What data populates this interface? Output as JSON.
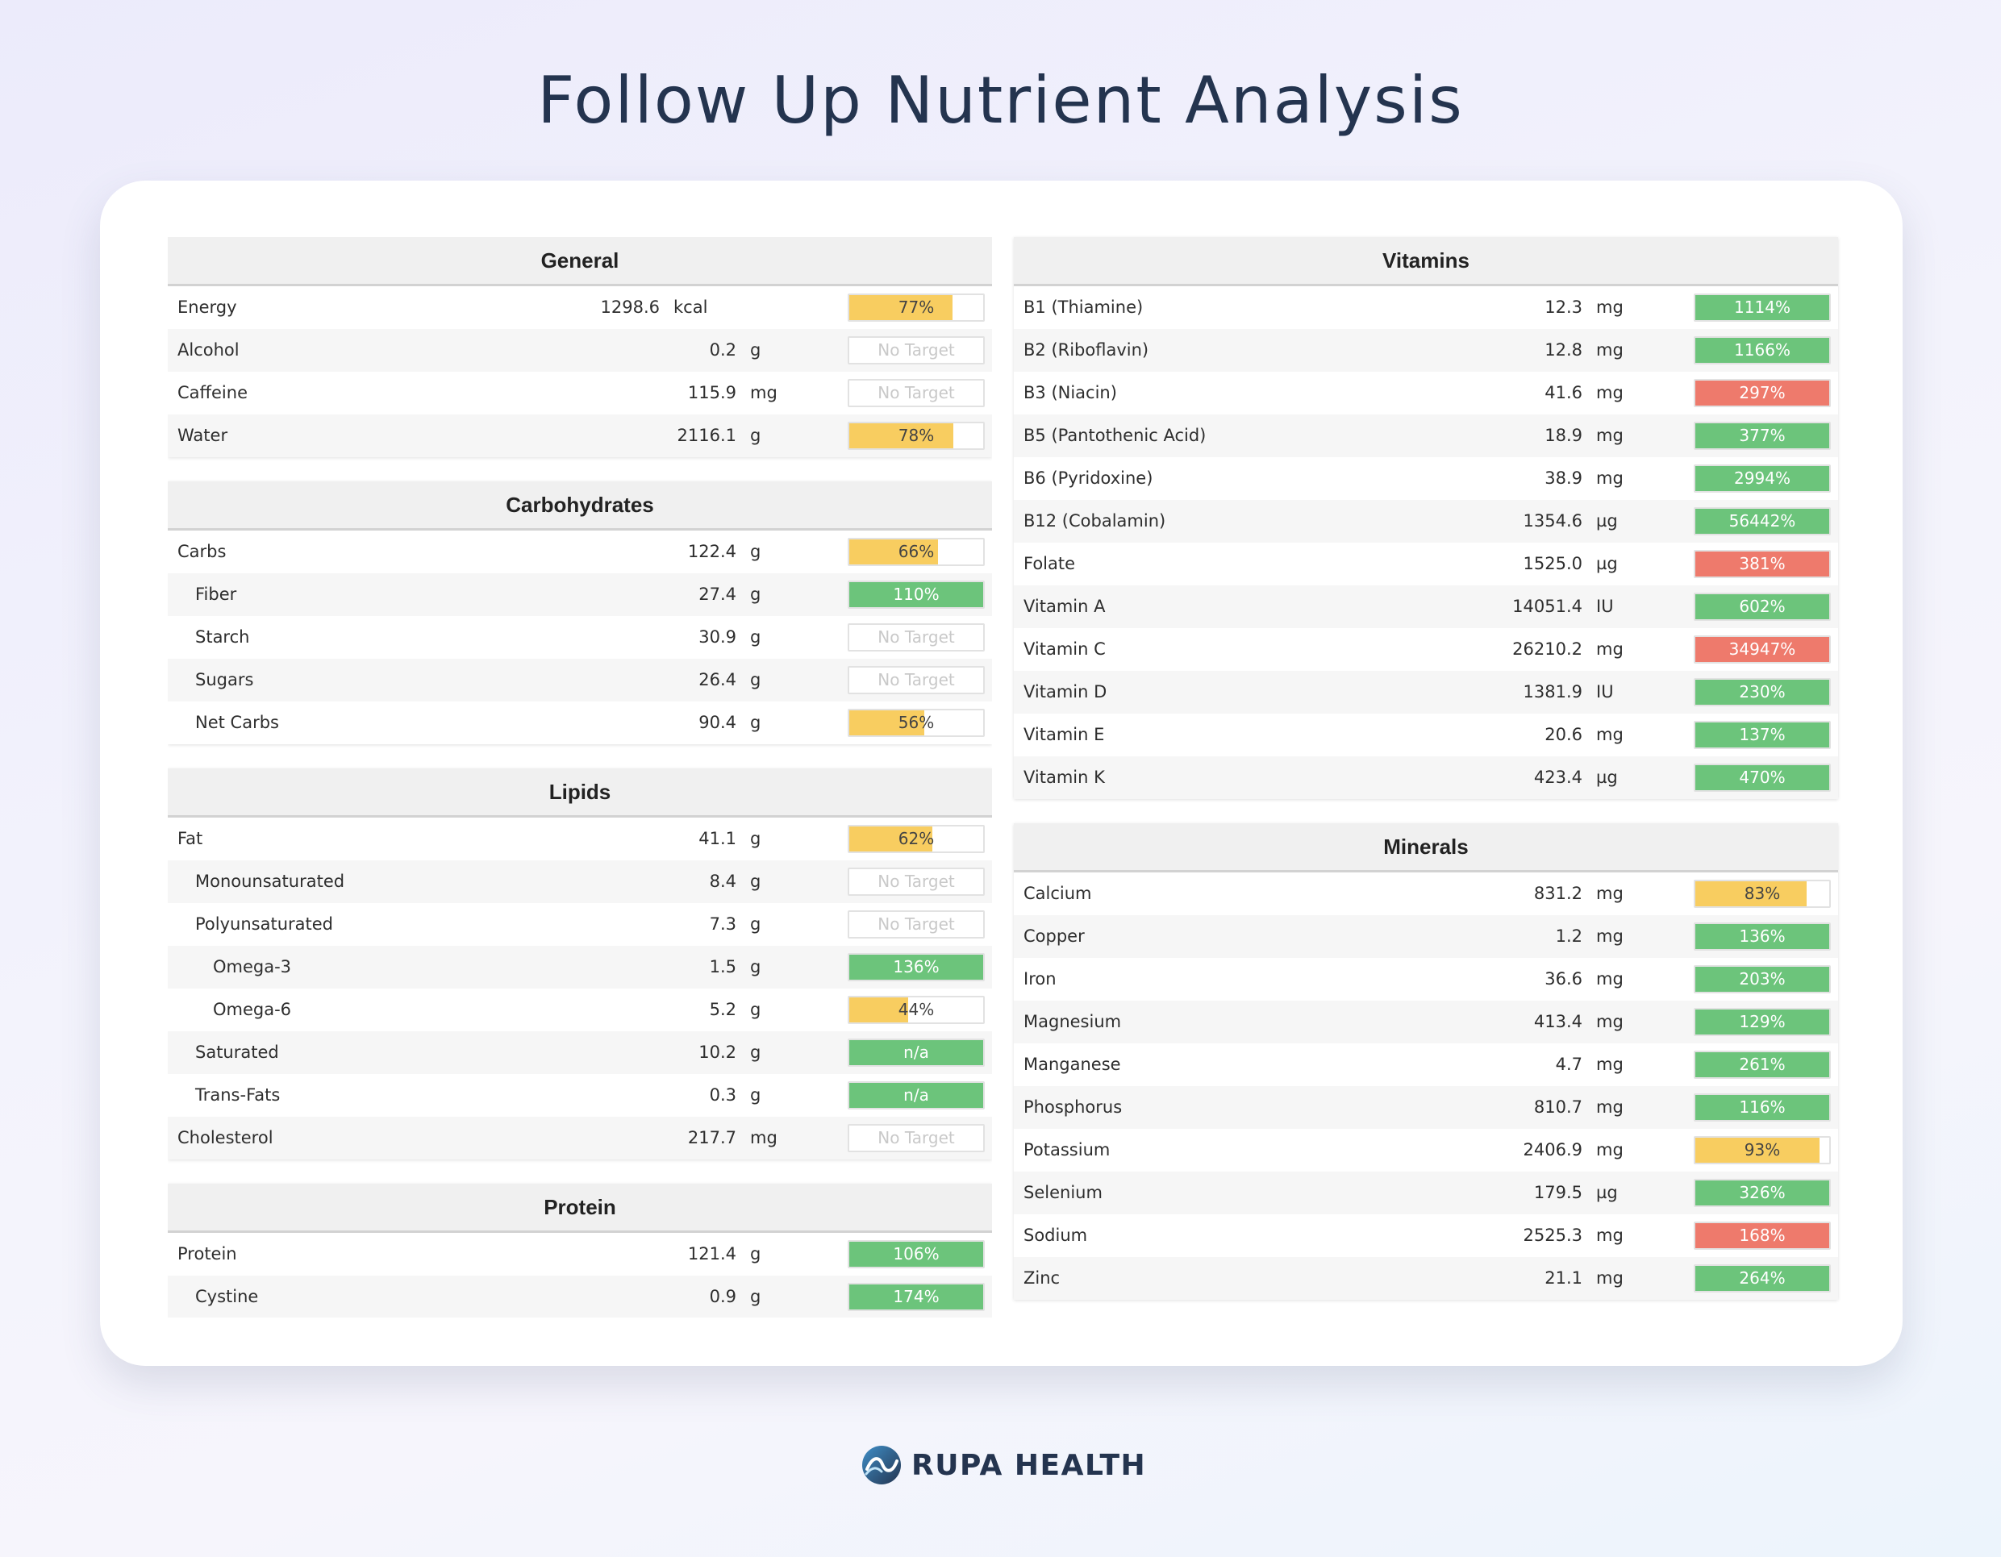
{
  "title": "Follow Up Nutrient Analysis",
  "brand": "RUPA HEALTH",
  "colors": {
    "green": "#6cc47b",
    "yellow": "#f8cd60",
    "red": "#ee7a6c"
  },
  "left_panels": [
    {
      "title": "General",
      "rows": [
        {
          "name": "Energy",
          "value": "1298.6",
          "unit": "kcal",
          "pct": "77%",
          "fill": 0.77,
          "status": "yellow",
          "indent": 0
        },
        {
          "name": "Alcohol",
          "value": "0.2",
          "unit": "g",
          "pct": "No Target",
          "fill": 0,
          "status": "none",
          "indent": 0
        },
        {
          "name": "Caffeine",
          "value": "115.9",
          "unit": "mg",
          "pct": "No Target",
          "fill": 0,
          "status": "none",
          "indent": 0
        },
        {
          "name": "Water",
          "value": "2116.1",
          "unit": "g",
          "pct": "78%",
          "fill": 0.78,
          "status": "yellow",
          "indent": 0
        }
      ]
    },
    {
      "title": "Carbohydrates",
      "rows": [
        {
          "name": "Carbs",
          "value": "122.4",
          "unit": "g",
          "pct": "66%",
          "fill": 0.66,
          "status": "yellow",
          "indent": 0
        },
        {
          "name": "Fiber",
          "value": "27.4",
          "unit": "g",
          "pct": "110%",
          "fill": 1,
          "status": "green",
          "indent": 1
        },
        {
          "name": "Starch",
          "value": "30.9",
          "unit": "g",
          "pct": "No Target",
          "fill": 0,
          "status": "none",
          "indent": 1
        },
        {
          "name": "Sugars",
          "value": "26.4",
          "unit": "g",
          "pct": "No Target",
          "fill": 0,
          "status": "none",
          "indent": 1
        },
        {
          "name": "Net Carbs",
          "value": "90.4",
          "unit": "g",
          "pct": "56%",
          "fill": 0.56,
          "status": "yellow",
          "indent": 1
        }
      ]
    },
    {
      "title": "Lipids",
      "rows": [
        {
          "name": "Fat",
          "value": "41.1",
          "unit": "g",
          "pct": "62%",
          "fill": 0.62,
          "status": "yellow",
          "indent": 0
        },
        {
          "name": "Monounsaturated",
          "value": "8.4",
          "unit": "g",
          "pct": "No Target",
          "fill": 0,
          "status": "none",
          "indent": 1
        },
        {
          "name": "Polyunsaturated",
          "value": "7.3",
          "unit": "g",
          "pct": "No Target",
          "fill": 0,
          "status": "none",
          "indent": 1
        },
        {
          "name": "Omega-3",
          "value": "1.5",
          "unit": "g",
          "pct": "136%",
          "fill": 1,
          "status": "green",
          "indent": 2
        },
        {
          "name": "Omega-6",
          "value": "5.2",
          "unit": "g",
          "pct": "44%",
          "fill": 0.44,
          "status": "yellow",
          "indent": 2
        },
        {
          "name": "Saturated",
          "value": "10.2",
          "unit": "g",
          "pct": "n/a",
          "fill": 1,
          "status": "green",
          "indent": 1
        },
        {
          "name": "Trans-Fats",
          "value": "0.3",
          "unit": "g",
          "pct": "n/a",
          "fill": 1,
          "status": "green",
          "indent": 1
        },
        {
          "name": "Cholesterol",
          "value": "217.7",
          "unit": "mg",
          "pct": "No Target",
          "fill": 0,
          "status": "none",
          "indent": 0
        }
      ]
    },
    {
      "title": "Protein",
      "rows": [
        {
          "name": "Protein",
          "value": "121.4",
          "unit": "g",
          "pct": "106%",
          "fill": 1,
          "status": "green",
          "indent": 0
        },
        {
          "name": "Cystine",
          "value": "0.9",
          "unit": "g",
          "pct": "174%",
          "fill": 1,
          "status": "green",
          "indent": 1
        }
      ]
    }
  ],
  "right_panels": [
    {
      "title": "Vitamins",
      "rows": [
        {
          "name": "B1 (Thiamine)",
          "value": "12.3",
          "unit": "mg",
          "pct": "1114%",
          "fill": 1,
          "status": "green",
          "indent": 0
        },
        {
          "name": "B2 (Riboflavin)",
          "value": "12.8",
          "unit": "mg",
          "pct": "1166%",
          "fill": 1,
          "status": "green",
          "indent": 0
        },
        {
          "name": "B3 (Niacin)",
          "value": "41.6",
          "unit": "mg",
          "pct": "297%",
          "fill": 1,
          "status": "red",
          "indent": 0
        },
        {
          "name": "B5 (Pantothenic Acid)",
          "value": "18.9",
          "unit": "mg",
          "pct": "377%",
          "fill": 1,
          "status": "green",
          "indent": 0
        },
        {
          "name": "B6 (Pyridoxine)",
          "value": "38.9",
          "unit": "mg",
          "pct": "2994%",
          "fill": 1,
          "status": "green",
          "indent": 0
        },
        {
          "name": "B12 (Cobalamin)",
          "value": "1354.6",
          "unit": "µg",
          "pct": "56442%",
          "fill": 1,
          "status": "green",
          "indent": 0
        },
        {
          "name": "Folate",
          "value": "1525.0",
          "unit": "µg",
          "pct": "381%",
          "fill": 1,
          "status": "red",
          "indent": 0
        },
        {
          "name": "Vitamin A",
          "value": "14051.4",
          "unit": "IU",
          "pct": "602%",
          "fill": 1,
          "status": "green",
          "indent": 0
        },
        {
          "name": "Vitamin C",
          "value": "26210.2",
          "unit": "mg",
          "pct": "34947%",
          "fill": 1,
          "status": "red",
          "indent": 0
        },
        {
          "name": "Vitamin D",
          "value": "1381.9",
          "unit": "IU",
          "pct": "230%",
          "fill": 1,
          "status": "green",
          "indent": 0
        },
        {
          "name": "Vitamin E",
          "value": "20.6",
          "unit": "mg",
          "pct": "137%",
          "fill": 1,
          "status": "green",
          "indent": 0
        },
        {
          "name": "Vitamin K",
          "value": "423.4",
          "unit": "µg",
          "pct": "470%",
          "fill": 1,
          "status": "green",
          "indent": 0
        }
      ]
    },
    {
      "title": "Minerals",
      "rows": [
        {
          "name": "Calcium",
          "value": "831.2",
          "unit": "mg",
          "pct": "83%",
          "fill": 0.83,
          "status": "yellow",
          "indent": 0
        },
        {
          "name": "Copper",
          "value": "1.2",
          "unit": "mg",
          "pct": "136%",
          "fill": 1,
          "status": "green",
          "indent": 0
        },
        {
          "name": "Iron",
          "value": "36.6",
          "unit": "mg",
          "pct": "203%",
          "fill": 1,
          "status": "green",
          "indent": 0
        },
        {
          "name": "Magnesium",
          "value": "413.4",
          "unit": "mg",
          "pct": "129%",
          "fill": 1,
          "status": "green",
          "indent": 0
        },
        {
          "name": "Manganese",
          "value": "4.7",
          "unit": "mg",
          "pct": "261%",
          "fill": 1,
          "status": "green",
          "indent": 0
        },
        {
          "name": "Phosphorus",
          "value": "810.7",
          "unit": "mg",
          "pct": "116%",
          "fill": 1,
          "status": "green",
          "indent": 0
        },
        {
          "name": "Potassium",
          "value": "2406.9",
          "unit": "mg",
          "pct": "93%",
          "fill": 0.93,
          "status": "yellow",
          "indent": 0
        },
        {
          "name": "Selenium",
          "value": "179.5",
          "unit": "µg",
          "pct": "326%",
          "fill": 1,
          "status": "green",
          "indent": 0
        },
        {
          "name": "Sodium",
          "value": "2525.3",
          "unit": "mg",
          "pct": "168%",
          "fill": 1,
          "status": "red",
          "indent": 0
        },
        {
          "name": "Zinc",
          "value": "21.1",
          "unit": "mg",
          "pct": "264%",
          "fill": 1,
          "status": "green",
          "indent": 0
        }
      ]
    }
  ]
}
